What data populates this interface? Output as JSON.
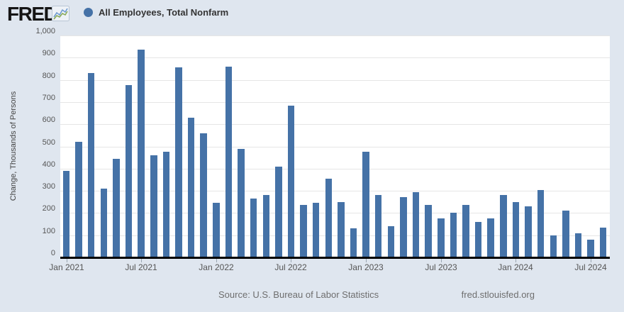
{
  "header": {
    "logo_text": "FRED",
    "registered_mark": "®"
  },
  "legend": {
    "label": "All Employees, Total Nonfarm"
  },
  "chart_data": {
    "type": "bar",
    "title": "All Employees, Total Nonfarm",
    "xlabel": "",
    "ylabel": "Change, Thousands of Persons",
    "ylim": [
      0,
      1000
    ],
    "y_tick_interval": 100,
    "y_tick_labels": [
      "0",
      "100",
      "200",
      "300",
      "400",
      "500",
      "600",
      "700",
      "800",
      "900",
      "1,000"
    ],
    "x_tick_labels": [
      "Jan 2021",
      "Jul 2021",
      "Jan 2022",
      "Jul 2022",
      "Jan 2023",
      "Jul 2023",
      "Jan 2024",
      "Jul 2024"
    ],
    "grid": true,
    "legend_position": "top",
    "categories": [
      "Jan 2021",
      "Feb 2021",
      "Mar 2021",
      "Apr 2021",
      "May 2021",
      "Jun 2021",
      "Jul 2021",
      "Aug 2021",
      "Sep 2021",
      "Oct 2021",
      "Nov 2021",
      "Dec 2021",
      "Jan 2022",
      "Feb 2022",
      "Mar 2022",
      "Apr 2022",
      "May 2022",
      "Jun 2022",
      "Jul 2022",
      "Aug 2022",
      "Sep 2022",
      "Oct 2022",
      "Nov 2022",
      "Dec 2022",
      "Jan 2023",
      "Feb 2023",
      "Mar 2023",
      "Apr 2023",
      "May 2023",
      "Jun 2023",
      "Jul 2023",
      "Aug 2023",
      "Sep 2023",
      "Oct 2023",
      "Nov 2023",
      "Dec 2023",
      "Jan 2024",
      "Feb 2024",
      "Mar 2024",
      "Apr 2024",
      "May 2024",
      "Jun 2024",
      "Jul 2024",
      "Aug 2024"
    ],
    "values": [
      390,
      520,
      830,
      310,
      445,
      775,
      935,
      460,
      475,
      855,
      630,
      560,
      245,
      860,
      490,
      265,
      280,
      410,
      685,
      235,
      245,
      355,
      250,
      130,
      475,
      280,
      140,
      270,
      295,
      235,
      175,
      200,
      235,
      160,
      175,
      280,
      250,
      230,
      305,
      100,
      210,
      110,
      80,
      135
    ]
  },
  "footer": {
    "source": "Source: U.S. Bureau of Labor Statistics",
    "site": "fred.stlouisfed.org"
  },
  "colors": {
    "series": "#4572a7",
    "background": "#dfe6ef",
    "plot_background": "#ffffff",
    "gridline": "#e6e6e6",
    "axis_line": "#000000",
    "tick_text": "#555555",
    "footer_text": "#6e6e6e"
  }
}
